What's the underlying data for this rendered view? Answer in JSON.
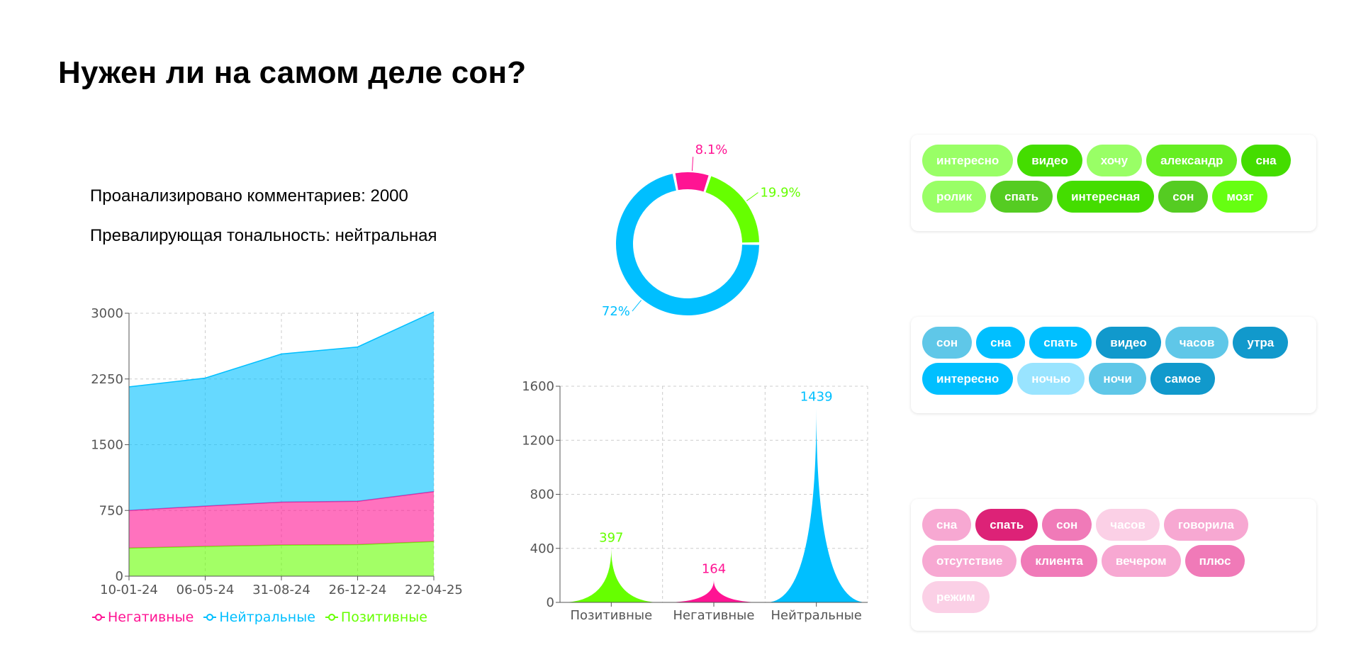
{
  "title": "Нужен ли на самом деле сон?",
  "stats": {
    "analyzed": "Проанализировано комментариев: 2000",
    "tonality": "Превалирующая тональность: нейтральная"
  },
  "colors": {
    "negative": "#ff1493",
    "neutral": "#00bfff",
    "positive": "#66ff00"
  },
  "chart_data": [
    {
      "type": "area",
      "stacked": true,
      "x": [
        "10-01-24",
        "06-05-24",
        "31-08-24",
        "26-12-24",
        "22-04-25"
      ],
      "ylim": [
        0,
        3000
      ],
      "yticks": [
        0,
        750,
        1500,
        2250,
        3000
      ],
      "grid": true,
      "legend": "bottom",
      "series": [
        {
          "name": "Позитивные",
          "values": [
            320,
            340,
            355,
            360,
            395
          ]
        },
        {
          "name": "Негативные",
          "values": [
            430,
            460,
            490,
            495,
            570
          ]
        },
        {
          "name": "Нейтральные",
          "values": [
            1410,
            1460,
            1690,
            1760,
            2050
          ]
        }
      ],
      "legend_order": [
        "Негативные",
        "Нейтральные",
        "Позитивные"
      ]
    },
    {
      "type": "pie",
      "donut": true,
      "slices": [
        {
          "label": "8.1%",
          "value": 8.1,
          "sentiment": "negative"
        },
        {
          "label": "19.9%",
          "value": 19.9,
          "sentiment": "positive"
        },
        {
          "label": "72%",
          "value": 72,
          "sentiment": "neutral"
        }
      ]
    },
    {
      "type": "bar",
      "categories": [
        "Позитивные",
        "Негативные",
        "Нейтральные"
      ],
      "values": [
        397,
        164,
        1439
      ],
      "ylim": [
        0,
        1600
      ],
      "yticks": [
        0,
        400,
        800,
        1200,
        1600
      ],
      "grid": true
    }
  ],
  "clouds": {
    "positive": [
      {
        "word": "интересно",
        "shade": "#99ff66"
      },
      {
        "word": "видео",
        "shade": "#44dd00"
      },
      {
        "word": "хочу",
        "shade": "#99ff66"
      },
      {
        "word": "александр",
        "shade": "#66ee22"
      },
      {
        "word": "сна",
        "shade": "#44dd00"
      },
      {
        "word": "ролик",
        "shade": "#99ff66"
      },
      {
        "word": "спать",
        "shade": "#55cc22"
      },
      {
        "word": "интересная",
        "shade": "#44dd00"
      },
      {
        "word": "сон",
        "shade": "#55cc22"
      },
      {
        "word": "мозг",
        "shade": "#66ff11"
      }
    ],
    "neutral": [
      {
        "word": "сон",
        "shade": "#5fc7e8"
      },
      {
        "word": "сна",
        "shade": "#00bfff"
      },
      {
        "word": "спать",
        "shade": "#00bfff"
      },
      {
        "word": "видео",
        "shade": "#1199cc"
      },
      {
        "word": "часов",
        "shade": "#5fc7e8"
      },
      {
        "word": "утра",
        "shade": "#1199cc"
      },
      {
        "word": "интересно",
        "shade": "#00bfff"
      },
      {
        "word": "ночью",
        "shade": "#99e4ff"
      },
      {
        "word": "ночи",
        "shade": "#5fc7e8"
      },
      {
        "word": "самое",
        "shade": "#1199cc"
      }
    ],
    "negative": [
      {
        "word": "сна",
        "shade": "#f7a8d2"
      },
      {
        "word": "спать",
        "shade": "#dd2277"
      },
      {
        "word": "сон",
        "shade": "#f07ab8"
      },
      {
        "word": "часов",
        "shade": "#fbd0e6"
      },
      {
        "word": "говорила",
        "shade": "#f7a8d2"
      },
      {
        "word": "отсутствие",
        "shade": "#f7a8d2"
      },
      {
        "word": "клиента",
        "shade": "#f07ab8"
      },
      {
        "word": "вечером",
        "shade": "#f7a8d2"
      },
      {
        "word": "плюс",
        "shade": "#f07ab8"
      },
      {
        "word": "режим",
        "shade": "#fbd0e6"
      }
    ]
  }
}
